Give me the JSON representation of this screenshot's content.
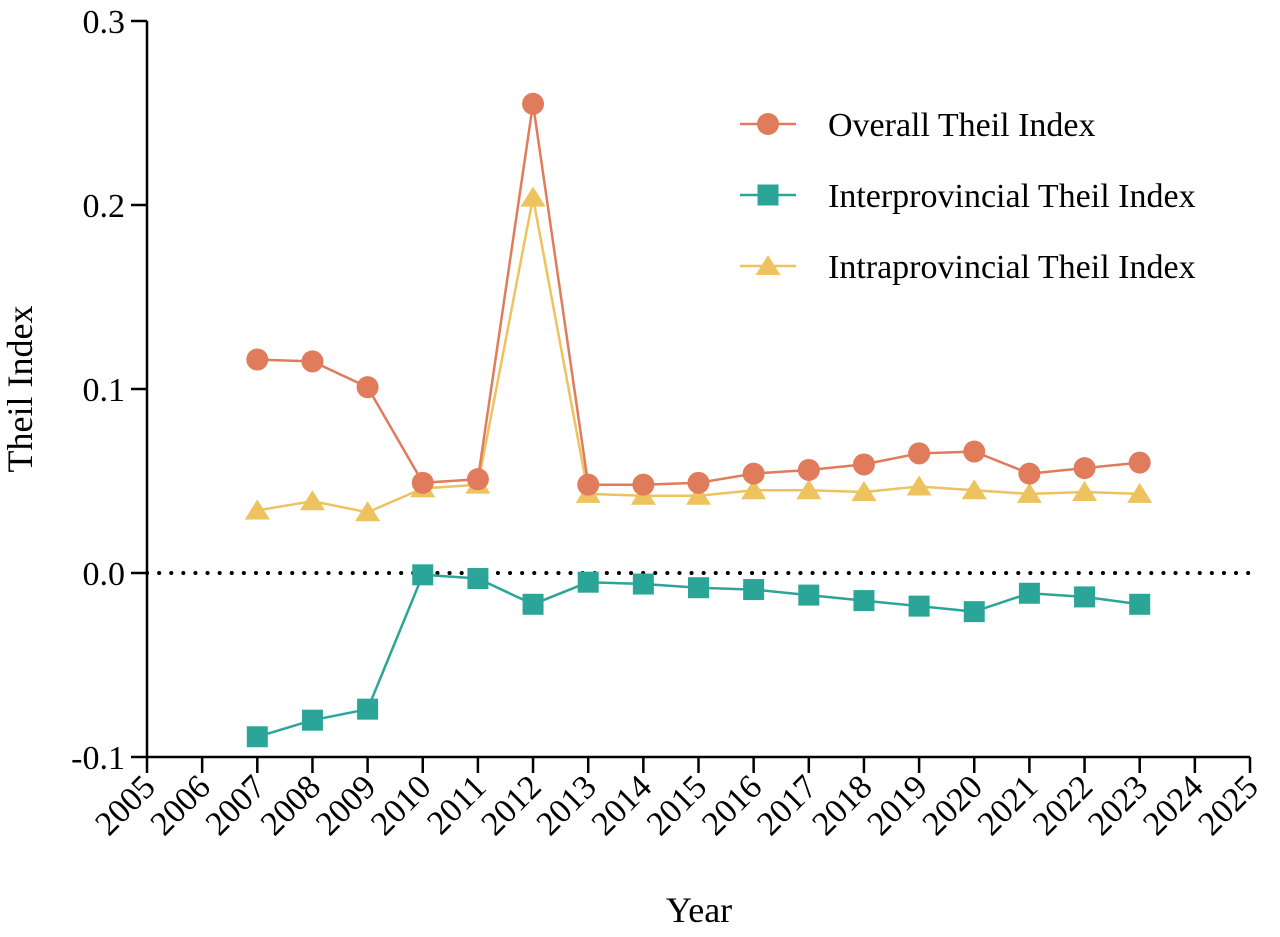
{
  "chart_data": {
    "type": "line",
    "title": "",
    "xlabel": "Year",
    "ylabel": "Theil Index",
    "xlim": [
      2005,
      2025
    ],
    "ylim": [
      -0.1,
      0.3
    ],
    "x_ticks": [
      "2005",
      "2006",
      "2007",
      "2008",
      "2009",
      "2010",
      "2011",
      "2012",
      "2013",
      "2014",
      "2015",
      "2016",
      "2017",
      "2018",
      "2019",
      "2020",
      "2021",
      "2022",
      "2023",
      "2024",
      "2025"
    ],
    "y_ticks": [
      "-0.1",
      "0.0",
      "0.1",
      "0.2",
      "0.3"
    ],
    "x": [
      2007,
      2008,
      2009,
      2010,
      2011,
      2012,
      2013,
      2014,
      2015,
      2016,
      2017,
      2018,
      2019,
      2020,
      2021,
      2022,
      2023
    ],
    "series": [
      {
        "name": "Overall Theil Index",
        "marker": "circle",
        "color": "#E07B5B",
        "values": [
          0.116,
          0.115,
          0.101,
          0.049,
          0.051,
          0.255,
          0.048,
          0.048,
          0.049,
          0.054,
          0.056,
          0.059,
          0.065,
          0.066,
          0.054,
          0.057,
          0.06
        ]
      },
      {
        "name": "Interprovincial Theil Index",
        "marker": "square",
        "color": "#2AA597",
        "values": [
          -0.089,
          -0.08,
          -0.074,
          -0.001,
          -0.003,
          -0.017,
          -0.005,
          -0.006,
          -0.008,
          -0.009,
          -0.012,
          -0.015,
          -0.018,
          -0.021,
          -0.011,
          -0.013,
          -0.017
        ]
      },
      {
        "name": "Intraprovincial Theil Index",
        "marker": "triangle",
        "color": "#EDC25F",
        "values": [
          0.034,
          0.039,
          0.033,
          0.046,
          0.048,
          0.204,
          0.043,
          0.042,
          0.042,
          0.045,
          0.045,
          0.044,
          0.047,
          0.045,
          0.043,
          0.044,
          0.043
        ]
      }
    ],
    "reference_line": {
      "y": 0.0,
      "style": "dotted"
    },
    "grid": false,
    "legend_position": "top-right"
  }
}
